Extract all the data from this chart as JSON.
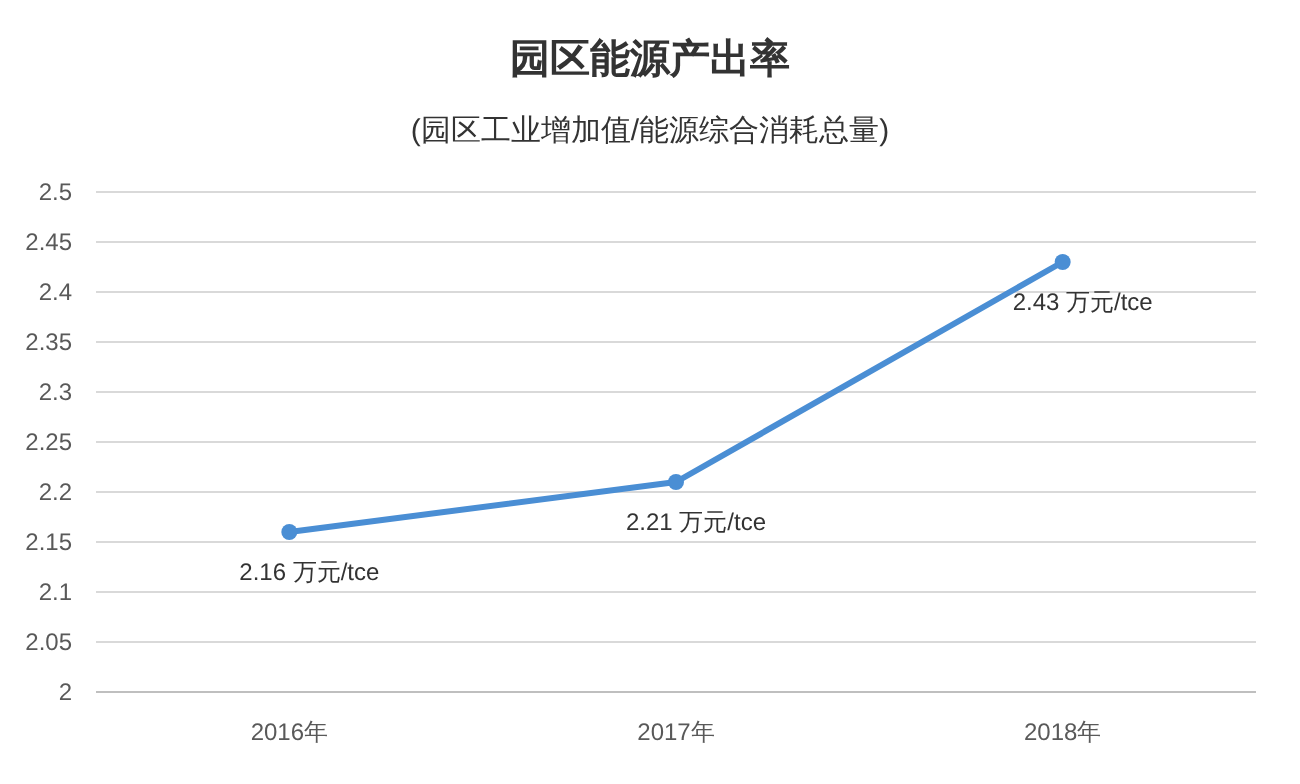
{
  "chart_data": {
    "type": "line",
    "title": "园区能源产出率",
    "subtitle": "(园区工业增加值/能源综合消耗总量)",
    "categories": [
      "2016年",
      "2017年",
      "2018年"
    ],
    "series": [
      {
        "color": "#4a8ed4",
        "values": [
          2.16,
          2.21,
          2.43
        ],
        "value_labels": [
          "2.16 万元/tce",
          "2.21 万元/tce",
          "2.43 万元/tce"
        ]
      }
    ],
    "ylim": [
      2,
      2.5
    ],
    "yticks": [
      2,
      2.05,
      2.1,
      2.15,
      2.2,
      2.25,
      2.3,
      2.35,
      2.4,
      2.45,
      2.5
    ],
    "grid": "y",
    "marker": "circle",
    "line_style": "solid"
  }
}
